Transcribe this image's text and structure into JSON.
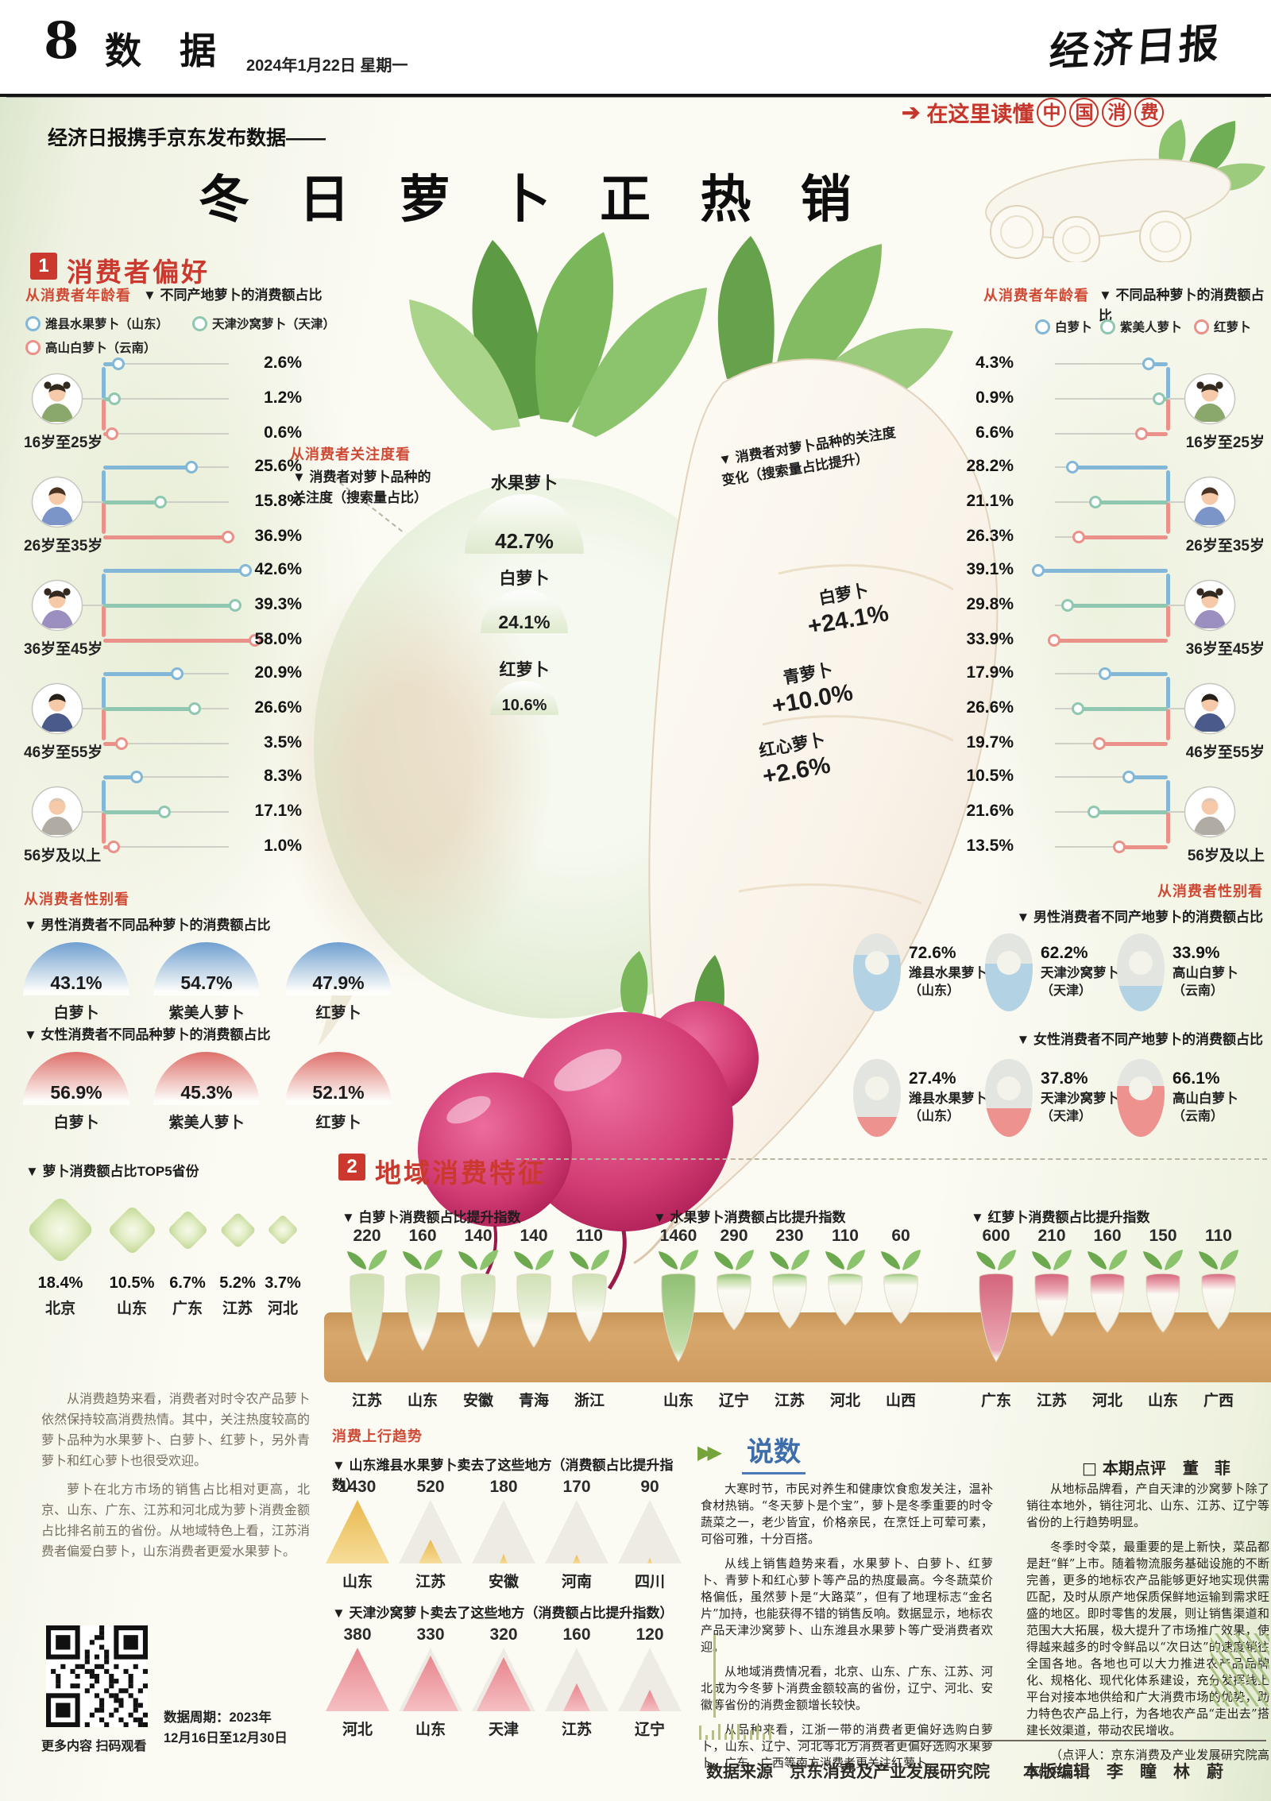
{
  "page": {
    "number": "8",
    "section_name": "数 据",
    "date": "2024年1月22日  星期一",
    "masthead": "经济日报"
  },
  "intro": {
    "kicker": "经济日报携手京东发布数据——",
    "title": "冬 日 萝 卜 正 热 销",
    "badge_arrow": "➔ ",
    "badge": "在这里读懂",
    "badge_circled": [
      "中",
      "国",
      "消",
      "费"
    ]
  },
  "section1": {
    "number": "1",
    "title": "消费者偏好",
    "age_left": {
      "eyebrow": "从消费者年龄看",
      "heading": "▼ 不同产地萝卜的消费额占比",
      "legend": [
        {
          "label": "潍县水果萝卜（山东）",
          "color": "#82b7d8"
        },
        {
          "label": "天津沙窝萝卜（天津）",
          "color": "#8fc7b1"
        },
        {
          "label": "高山白萝卜（云南）",
          "color": "#ea9289"
        }
      ],
      "groups": [
        {
          "label": "16岁至25岁",
          "values": [
            2.6,
            1.2,
            0.6
          ]
        },
        {
          "label": "26岁至35岁",
          "values": [
            25.6,
            15.8,
            36.9
          ]
        },
        {
          "label": "36岁至45岁",
          "values": [
            42.6,
            39.3,
            58.0
          ]
        },
        {
          "label": "46岁至55岁",
          "values": [
            20.9,
            26.6,
            3.5
          ]
        },
        {
          "label": "56岁及以上",
          "values": [
            8.3,
            17.1,
            1.0
          ]
        }
      ]
    },
    "age_right": {
      "eyebrow": "从消费者年龄看",
      "heading": "▼ 不同品种萝卜的消费额占比",
      "legend": [
        {
          "label": "白萝卜",
          "color": "#82b7d8"
        },
        {
          "label": "紫美人萝卜",
          "color": "#8fc7b1"
        },
        {
          "label": "红萝卜",
          "color": "#ea9289"
        }
      ],
      "groups": [
        {
          "label": "16岁至25岁",
          "values": [
            4.3,
            0.9,
            6.6
          ]
        },
        {
          "label": "26岁至35岁",
          "values": [
            28.2,
            21.1,
            26.3
          ]
        },
        {
          "label": "36岁至45岁",
          "values": [
            39.1,
            29.8,
            33.9
          ]
        },
        {
          "label": "46岁至55岁",
          "values": [
            17.9,
            26.6,
            19.7
          ]
        },
        {
          "label": "56岁及以上",
          "values": [
            10.5,
            21.6,
            13.5
          ]
        }
      ]
    },
    "attention": {
      "eyebrow": "从消费者关注度看",
      "heading": "▼ 消费者对萝卜品种的\n关注度（搜索量占比）",
      "items": [
        {
          "label": "水果萝卜",
          "value": "42.7%"
        },
        {
          "label": "白萝卜",
          "value": "24.1%"
        },
        {
          "label": "红萝卜",
          "value": "10.6%"
        }
      ]
    },
    "attention_change": {
      "heading": "▼ 消费者对萝卜品种的关注度\n变化（搜索量占比提升）",
      "items": [
        {
          "label": "白萝卜",
          "value": "+24.1%"
        },
        {
          "label": "青萝卜",
          "value": "+10.0%"
        },
        {
          "label": "红心萝卜",
          "value": "+2.6%"
        }
      ]
    },
    "gender_left": {
      "eyebrow": "从消费者性别看",
      "male_heading": "▼ 男性消费者不同品种萝卜的消费额占比",
      "male": [
        {
          "value": "43.1%",
          "label": "白萝卜"
        },
        {
          "value": "54.7%",
          "label": "紫美人萝卜"
        },
        {
          "value": "47.9%",
          "label": "红萝卜"
        }
      ],
      "female_heading": "▼ 女性消费者不同品种萝卜的消费额占比",
      "female": [
        {
          "value": "56.9%",
          "label": "白萝卜"
        },
        {
          "value": "45.3%",
          "label": "紫美人萝卜"
        },
        {
          "value": "52.1%",
          "label": "红萝卜"
        }
      ],
      "male_color": "#6f9fd0",
      "female_color": "#dd6f6a"
    },
    "gender_right": {
      "eyebrow": "从消费者性别看",
      "male_heading": "▼ 男性消费者不同产地萝卜的消费额占比",
      "male": [
        {
          "value": "72.6%",
          "pct": 72.6,
          "label": "潍县水果萝卜",
          "origin": "（山东）"
        },
        {
          "value": "62.2%",
          "pct": 62.2,
          "label": "天津沙窝萝卜",
          "origin": "（天津）"
        },
        {
          "value": "33.9%",
          "pct": 33.9,
          "label": "高山白萝卜",
          "origin": "（云南）"
        }
      ],
      "female_heading": "▼ 女性消费者不同产地萝卜的消费额占比",
      "female": [
        {
          "value": "27.4%",
          "pct": 27.4,
          "label": "潍县水果萝卜",
          "origin": "（山东）"
        },
        {
          "value": "37.8%",
          "pct": 37.8,
          "label": "天津沙窝萝卜",
          "origin": "（天津）"
        },
        {
          "value": "66.1%",
          "pct": 66.1,
          "label": "高山白萝卜",
          "origin": "（云南）"
        }
      ],
      "male_fill": "#b3d2e4",
      "female_fill": "#ee928f"
    },
    "top5": {
      "heading": "▼ 萝卜消费额占比TOP5省份",
      "items": [
        {
          "value": "18.4%",
          "label": "北京",
          "size": 62
        },
        {
          "value": "10.5%",
          "label": "山东",
          "size": 45
        },
        {
          "value": "6.7%",
          "label": "广东",
          "size": 37
        },
        {
          "value": "5.2%",
          "label": "江苏",
          "size": 33
        },
        {
          "value": "3.7%",
          "label": "河北",
          "size": 28
        }
      ]
    }
  },
  "section2": {
    "number": "2",
    "title": "地域消费特征",
    "groups": [
      {
        "heading": "▼ 白萝卜消费额占比提升指数",
        "color": "#cfe0b4",
        "light": "#e9f1db",
        "values": [
          220,
          160,
          140,
          140,
          110
        ],
        "provinces": [
          "江苏",
          "山东",
          "安徽",
          "青海",
          "浙江"
        ]
      },
      {
        "heading": "▼ 水果萝卜消费额占比提升指数",
        "color": "#8fbf72",
        "light": "#c6e0ae",
        "values": [
          1460,
          290,
          230,
          110,
          60
        ],
        "provinces": [
          "山东",
          "辽宁",
          "江苏",
          "河北",
          "山西"
        ]
      },
      {
        "heading": "▼ 红萝卜消费额占比提升指数",
        "color": "#d4647c",
        "light": "#eba9b4",
        "values": [
          600,
          210,
          160,
          150,
          110
        ],
        "provinces": [
          "广东",
          "江苏",
          "河北",
          "山东",
          "广西"
        ]
      }
    ]
  },
  "upstream": {
    "eyebrow": "消费上行趋势",
    "charts": [
      {
        "heading": "▼ 山东潍县水果萝卜卖去了这些地方（消费额占比提升指数）",
        "color": "#e9b84e",
        "light": "#f6dd9a",
        "values": [
          1430,
          520,
          180,
          170,
          90
        ],
        "provinces": [
          "山东",
          "江苏",
          "安徽",
          "河南",
          "四川"
        ]
      },
      {
        "heading": "▼ 天津沙窝萝卜卖去了这些地方（消费额占比提升指数）",
        "color": "#e8868e",
        "light": "#f5bfc2",
        "values": [
          380,
          330,
          320,
          160,
          120
        ],
        "provinces": [
          "河北",
          "山东",
          "天津",
          "江苏",
          "辽宁"
        ]
      }
    ]
  },
  "left_notes": [
    "从消费趋势来看，消费者对时令农产品萝卜依然保持较高消费热情。其中，关注热度较高的萝卜品种为水果萝卜、白萝卜、红萝卜，另外青萝卜和红心萝卜也很受欢迎。",
    "萝卜在北方市场的销售占比相对更高，北京、山东、广东、江苏和河北成为萝卜消费金额占比排名前五的省份。从地域特色上看，江苏消费者偏爱白萝卜，山东消费者更爱水果萝卜。"
  ],
  "qr": {
    "caption": "更多内容 扫码观看",
    "period_line1": "数据周期：2023年",
    "period_line2": "12月16日至12月30日"
  },
  "shuoshu": {
    "icon": "▶▶",
    "title": "说数",
    "review_label": "□  本期点评",
    "reviewer": "董　菲",
    "col1": [
      "大寒时节，市民对养生和健康饮食愈发关注，温补食材热销。“冬天萝卜是个宝”，萝卜是冬季重要的时令蔬菜之一，老少皆宜，价格亲民，在烹饪上可荤可素，可俗可雅，十分百搭。",
      "从线上销售趋势来看，水果萝卜、白萝卜、红萝卜、青萝卜和红心萝卜等产品的热度最高。今冬蔬菜价格偏低，虽然萝卜是“大路菜”，但有了地理标志“金名片”加持，也能获得不错的销售反响。数据显示，地标农产品天津沙窝萝卜、山东潍县水果萝卜等广受消费者欢迎。",
      "从地域消费情况看，北京、山东、广东、江苏、河北成为今冬萝卜消费金额较高的省份，辽宁、河北、安徽等省份的消费金额增长较快。",
      "从品种来看，江浙一带的消费者更偏好选购白萝卜，山东、辽宁、河北等北方消费者更偏好选购水果萝卜，广东、广西等南方消费者更关注红萝卜。"
    ],
    "col2": [
      "从地标品牌看，产自天津的沙窝萝卜除了销往本地外，销往河北、山东、江苏、辽宁等省份的上行趋势明显。",
      "冬季时令菜，最重要的是上新快，菜品都是赶“鲜”上市。随着物流服务基础设施的不断完善，更多的地标农产品能够更好地实现供需匹配，及时从原产地保质保鲜地运输到需求旺盛的地区。即时零售的发展，则让销售渠道和范围大大拓展，极大提升了市场推广效果，使得越来越多的时令鲜品以“次日达”的速度销往全国各地。各地也可以大力推进农产品品牌化、规格化、现代化体系建设，充分发挥线上平台对接本地供给和广大消费市场的优势，助力特色农产品上行，为各地农产品“走出去”搭建长效渠道，带动农民增收。",
      "（点评人：京东消费及产业发展研究院高级研究员）"
    ]
  },
  "footer": {
    "credit": "数据来源　京东消费及产业发展研究院　　本版编辑　李　瞳　林　蔚"
  }
}
